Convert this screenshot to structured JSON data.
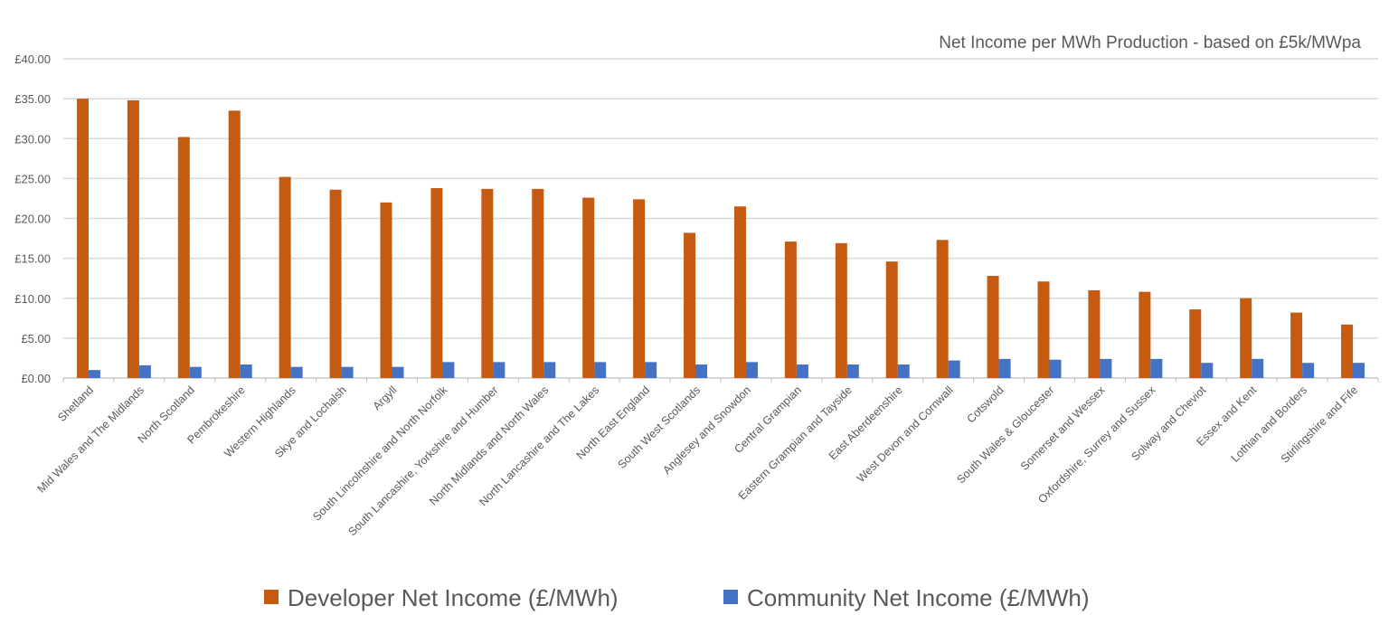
{
  "chart_data": {
    "type": "bar",
    "title": "Net Income per MWh Production - based on £5k/MWpa",
    "xlabel": "",
    "ylabel": "",
    "ylim": [
      0,
      40
    ],
    "yticks": [
      "£0.00",
      "£5.00",
      "£10.00",
      "£15.00",
      "£20.00",
      "£25.00",
      "£30.00",
      "£35.00",
      "£40.00"
    ],
    "grid": true,
    "legend_position": "bottom",
    "categories": [
      "Shetland",
      "Mid Wales and The Midlands",
      "North Scotland",
      "Pembrokeshire",
      "Western Highlands",
      "Skye and Lochalsh",
      "Argyll",
      "South Lincolnshire and North Norfolk",
      "South Lancashire, Yorkshire and Humber",
      "North Midlands and North Wales",
      "North Lancashire and The Lakes",
      "North East England",
      "South West Scotlands",
      "Anglesey and Snowdon",
      "Central Grampian",
      "Eastern Grampian and Tayside",
      "East Aberdeenshire",
      "West Devon and Cornwall",
      "Cotswold",
      "South Wales & Gloucester",
      "Somerset and Wessex",
      "Oxfordshire, Surrey and Sussex",
      "Solway and Cheviot",
      "Essex and Kent",
      "Lothian and Borders",
      "Stirlingshire and Fife"
    ],
    "series": [
      {
        "name": "Developer Net Income (£/MWh)",
        "color": "#C55A11",
        "values": [
          35.0,
          34.8,
          30.2,
          33.5,
          25.2,
          23.6,
          22.0,
          23.8,
          23.7,
          23.7,
          22.6,
          22.4,
          18.2,
          21.5,
          17.1,
          16.9,
          14.6,
          17.3,
          12.8,
          12.1,
          11.0,
          10.8,
          8.6,
          10.0,
          8.2,
          6.7
        ]
      },
      {
        "name": "Community Net Income (£/MWh)",
        "color": "#4472C4",
        "values": [
          1.0,
          1.6,
          1.4,
          1.7,
          1.4,
          1.4,
          1.4,
          2.0,
          2.0,
          2.0,
          2.0,
          2.0,
          1.7,
          2.0,
          1.7,
          1.7,
          1.7,
          2.2,
          2.4,
          2.3,
          2.4,
          2.4,
          1.9,
          2.4,
          1.9,
          1.9
        ]
      }
    ]
  }
}
